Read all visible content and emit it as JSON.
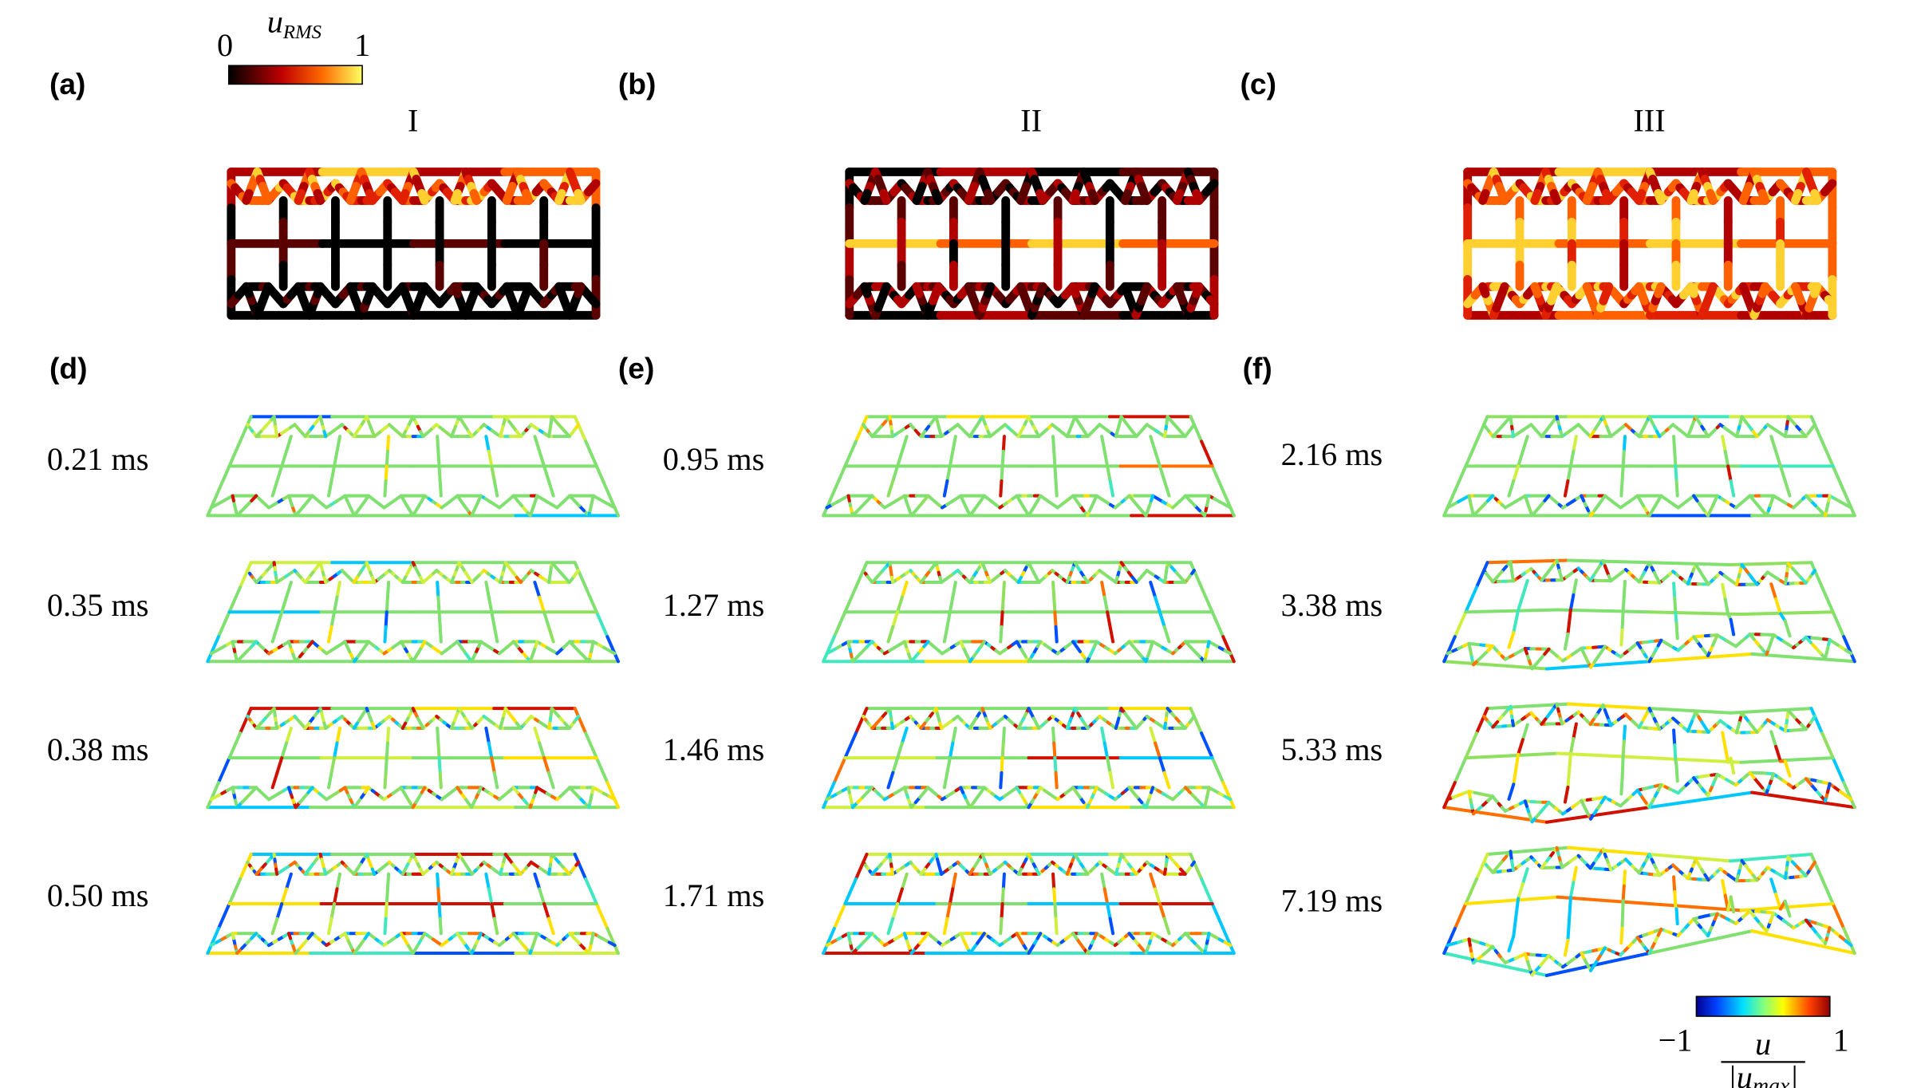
{
  "top_panels": [
    {
      "label": "(a)",
      "title": "I"
    },
    {
      "label": "(b)",
      "title": "II"
    },
    {
      "label": "(c)",
      "title": "III"
    }
  ],
  "bottom_panels": [
    {
      "label": "(d)",
      "times": [
        "0.21 ms",
        "0.35 ms",
        "0.38 ms",
        "0.50 ms"
      ]
    },
    {
      "label": "(e)",
      "times": [
        "0.95 ms",
        "1.27 ms",
        "1.46 ms",
        "1.71 ms"
      ]
    },
    {
      "label": "(f)",
      "times": [
        "2.16 ms",
        "3.38 ms",
        "5.33 ms",
        "7.19 ms"
      ]
    }
  ],
  "colorbar_rms": {
    "symbol": "u",
    "subscript": "RMS",
    "min": 0,
    "max": 1
  },
  "colorbar_u": {
    "min": "−1",
    "max": "1",
    "numerator": "u",
    "denominator": [
      "|u",
      "max",
      "|"
    ]
  }
}
